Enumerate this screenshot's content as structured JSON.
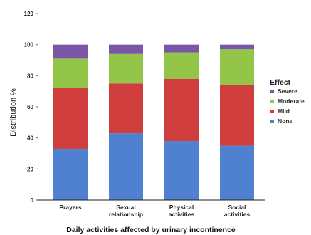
{
  "chart_data": {
    "type": "bar",
    "stacked": true,
    "categories": [
      [
        "Prayers"
      ],
      [
        "Sexual",
        "relationship"
      ],
      [
        "Physical",
        "activities"
      ],
      [
        "Social",
        "activities"
      ]
    ],
    "series": [
      {
        "name": "None",
        "color": "#4f81d0",
        "values": [
          33,
          43,
          38,
          35
        ]
      },
      {
        "name": "Mild",
        "color": "#cf3d3d",
        "values": [
          39,
          32,
          40,
          39
        ]
      },
      {
        "name": "Moderate",
        "color": "#93c548",
        "values": [
          19,
          19,
          17,
          23
        ]
      },
      {
        "name": "Severe",
        "color": "#7b55a6",
        "values": [
          9,
          6,
          5,
          3
        ]
      }
    ],
    "legend_title": "Effect",
    "legend_order": [
      "Severe",
      "Moderate",
      "Mild",
      "None"
    ],
    "legend_position": "right",
    "ylabel": "Distribution %",
    "xlabel": "Daily activities affected by urinary incontinence",
    "ylim": [
      0,
      120
    ],
    "yticks": [
      0,
      20,
      40,
      60,
      80,
      100,
      120
    ],
    "grid": false
  }
}
